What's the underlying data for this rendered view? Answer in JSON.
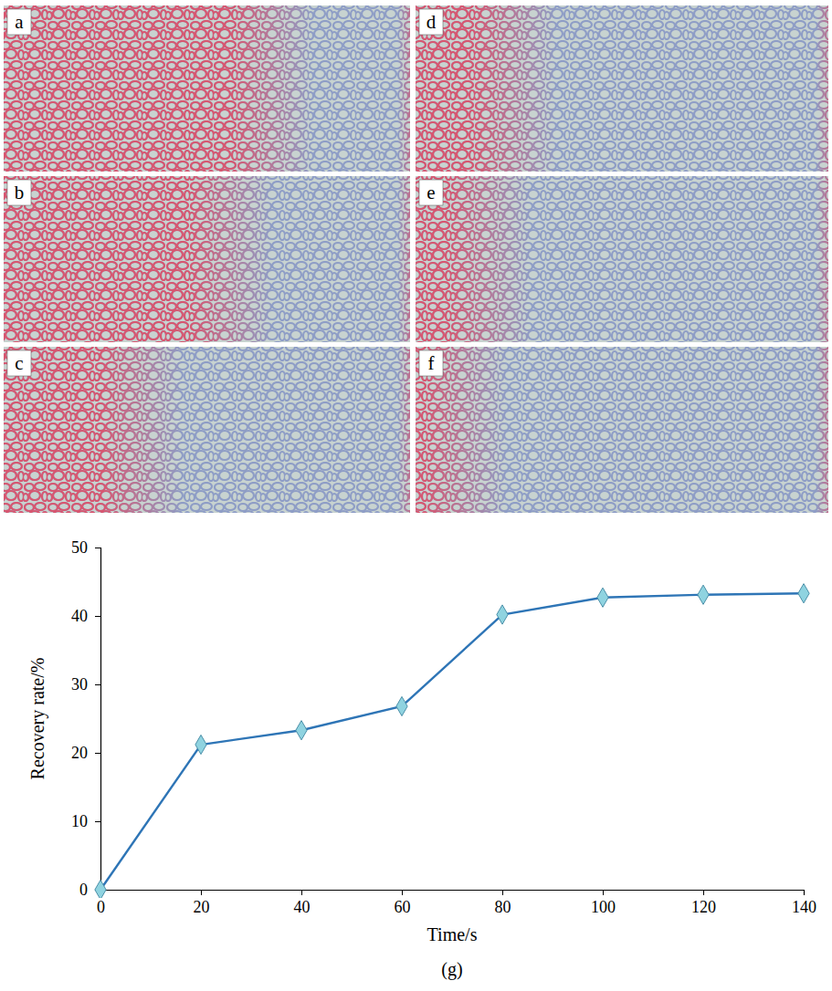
{
  "panels": [
    {
      "label": "a"
    },
    {
      "label": "b"
    },
    {
      "label": "c"
    },
    {
      "label": "d"
    },
    {
      "label": "e"
    },
    {
      "label": "f"
    }
  ],
  "chart_data": {
    "type": "line",
    "title": "(g)",
    "x_label": "Time/s",
    "y_label": "Recovery rate/%",
    "x": [
      0,
      20,
      40,
      60,
      80,
      100,
      120,
      140
    ],
    "values": [
      0,
      21.2,
      23.3,
      26.8,
      40.2,
      42.7,
      43.1,
      43.3
    ],
    "color": "#2e75b6",
    "marker": "diamond",
    "xlim": [
      0,
      140
    ],
    "xticks": [
      0,
      20,
      40,
      60,
      80,
      100,
      120,
      140
    ],
    "ylim": [
      0,
      50
    ],
    "yticks": [
      0,
      10,
      20,
      30,
      40,
      50
    ]
  }
}
